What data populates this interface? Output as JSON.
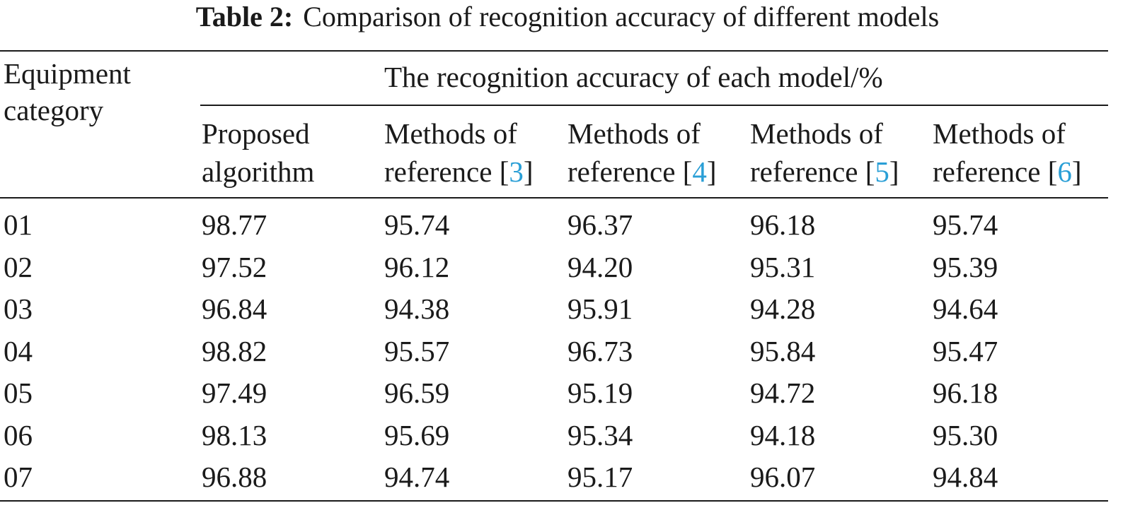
{
  "title": {
    "label": "Table 2:",
    "text": "Comparison of recognition accuracy of different models"
  },
  "table": {
    "row_header": "Equipment category",
    "spanner": "The recognition accuracy of each model/%",
    "columns": [
      {
        "text": "Proposed algorithm"
      },
      {
        "prefix": "Methods of reference [",
        "ref": "3",
        "suffix": "]"
      },
      {
        "prefix": "Methods of reference [",
        "ref": "4",
        "suffix": "]"
      },
      {
        "prefix": "Methods of reference [",
        "ref": "5",
        "suffix": "]"
      },
      {
        "prefix": "Methods of reference [",
        "ref": "6",
        "suffix": "]"
      }
    ],
    "rows": [
      [
        "01",
        "98.77",
        "95.74",
        "96.37",
        "96.18",
        "95.74"
      ],
      [
        "02",
        "97.52",
        "96.12",
        "94.20",
        "95.31",
        "95.39"
      ],
      [
        "03",
        "96.84",
        "94.38",
        "95.91",
        "94.28",
        "94.64"
      ],
      [
        "04",
        "98.82",
        "95.57",
        "96.73",
        "95.84",
        "95.47"
      ],
      [
        "05",
        "97.49",
        "96.59",
        "95.19",
        "94.72",
        "96.18"
      ],
      [
        "06",
        "98.13",
        "95.69",
        "95.34",
        "94.18",
        "95.30"
      ],
      [
        "07",
        "96.88",
        "94.74",
        "95.17",
        "96.07",
        "94.84"
      ]
    ]
  }
}
